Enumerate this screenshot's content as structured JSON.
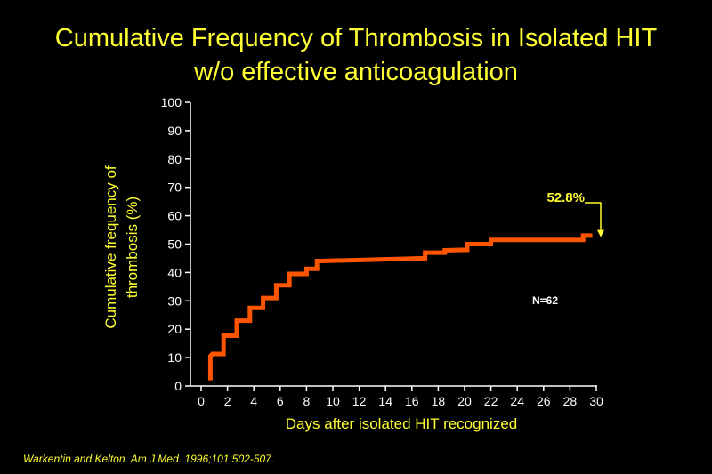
{
  "title": [
    "Cumulative Frequency of Thrombosis in Isolated HIT",
    "w/o effective anticoagulation"
  ],
  "citation": "Warkentin and Kelton. Am J Med. 1996;101:502-507.",
  "chart_data": {
    "type": "line",
    "step": true,
    "xlabel": "Days after isolated HIT recognized",
    "ylabel": [
      "Cumulative frequency of",
      "thrombosis (%)"
    ],
    "xlim": [
      0,
      30
    ],
    "ylim": [
      0,
      100
    ],
    "xticks": [
      0,
      2,
      4,
      6,
      8,
      10,
      12,
      14,
      16,
      18,
      20,
      22,
      24,
      26,
      28,
      30
    ],
    "yticks": [
      0,
      10,
      20,
      30,
      40,
      50,
      60,
      70,
      80,
      90,
      100
    ],
    "x": [
      0.7,
      0.7,
      0.85,
      1.7,
      1.7,
      2.7,
      2.7,
      3.7,
      3.7,
      4.7,
      4.7,
      5.7,
      5.7,
      6.7,
      6.7,
      8.0,
      8.0,
      8.8,
      8.8,
      17.0,
      17.0,
      18.5,
      18.5,
      20.2,
      20.2,
      22.0,
      22.0,
      29.0,
      29.0,
      29.7
    ],
    "y": [
      2,
      10.5,
      11.3,
      11.3,
      17.7,
      17.7,
      23,
      23,
      27.5,
      27.5,
      31,
      31,
      35.5,
      35.5,
      39.5,
      39.5,
      41.3,
      41.3,
      44,
      45,
      47,
      47,
      47.8,
      48,
      50,
      50,
      51.5,
      51.5,
      53,
      53
    ],
    "series": [
      {
        "name": "",
        "color": "#ff5500"
      }
    ],
    "annotations": [
      {
        "label": "52.8%",
        "x": 29.7,
        "y": 52.8,
        "color": "#ffff33"
      },
      {
        "label": "N=62",
        "x": 25.5,
        "y": 30,
        "color": "#ffffff"
      }
    ],
    "grid": false,
    "axis_color": "#ffffff",
    "tick_label_color": "#ffffff",
    "label_color": "#ffff33"
  }
}
